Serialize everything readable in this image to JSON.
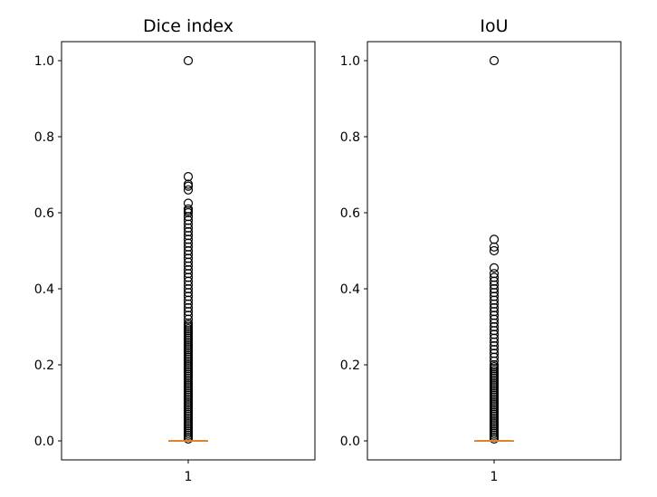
{
  "chart_data": [
    {
      "type": "box",
      "title": "Dice index",
      "xlabel": "",
      "ylabel": "",
      "categories": [
        "1"
      ],
      "ylim": [
        -0.05,
        1.05
      ],
      "yticks": [
        "0.0",
        "0.2",
        "0.4",
        "0.6",
        "0.8",
        "1.0"
      ],
      "grid": false,
      "box": {
        "min": 0.0,
        "q1": 0.0,
        "median": 0.0,
        "q3": 0.0,
        "max": 0.0
      },
      "outliers": [
        0.005,
        0.01,
        0.015,
        0.02,
        0.025,
        0.03,
        0.035,
        0.04,
        0.045,
        0.05,
        0.055,
        0.06,
        0.065,
        0.07,
        0.075,
        0.08,
        0.085,
        0.09,
        0.095,
        0.1,
        0.105,
        0.11,
        0.115,
        0.12,
        0.125,
        0.13,
        0.135,
        0.14,
        0.145,
        0.15,
        0.155,
        0.16,
        0.165,
        0.17,
        0.175,
        0.18,
        0.185,
        0.19,
        0.195,
        0.2,
        0.205,
        0.21,
        0.215,
        0.22,
        0.225,
        0.23,
        0.235,
        0.24,
        0.245,
        0.25,
        0.255,
        0.26,
        0.265,
        0.27,
        0.275,
        0.28,
        0.285,
        0.29,
        0.295,
        0.3,
        0.305,
        0.31,
        0.32,
        0.33,
        0.34,
        0.35,
        0.36,
        0.37,
        0.38,
        0.39,
        0.4,
        0.41,
        0.42,
        0.43,
        0.44,
        0.45,
        0.46,
        0.47,
        0.48,
        0.49,
        0.5,
        0.51,
        0.52,
        0.53,
        0.54,
        0.55,
        0.56,
        0.57,
        0.58,
        0.59,
        0.6,
        0.605,
        0.61,
        0.625,
        0.66,
        0.67,
        0.675,
        0.695,
        1.0
      ],
      "colors": {
        "median": "#e8802a",
        "outlier": "#000000"
      }
    },
    {
      "type": "box",
      "title": "IoU",
      "xlabel": "",
      "ylabel": "",
      "categories": [
        "1"
      ],
      "ylim": [
        -0.05,
        1.05
      ],
      "yticks": [
        "0.0",
        "0.2",
        "0.4",
        "0.6",
        "0.8",
        "1.0"
      ],
      "grid": false,
      "box": {
        "min": 0.0,
        "q1": 0.0,
        "median": 0.0,
        "q3": 0.0,
        "max": 0.0
      },
      "outliers": [
        0.005,
        0.01,
        0.015,
        0.02,
        0.025,
        0.03,
        0.035,
        0.04,
        0.045,
        0.05,
        0.055,
        0.06,
        0.065,
        0.07,
        0.075,
        0.08,
        0.085,
        0.09,
        0.095,
        0.1,
        0.105,
        0.11,
        0.115,
        0.12,
        0.125,
        0.13,
        0.135,
        0.14,
        0.145,
        0.15,
        0.155,
        0.16,
        0.165,
        0.17,
        0.175,
        0.18,
        0.185,
        0.19,
        0.195,
        0.2,
        0.21,
        0.22,
        0.23,
        0.24,
        0.25,
        0.26,
        0.27,
        0.28,
        0.29,
        0.3,
        0.31,
        0.32,
        0.33,
        0.34,
        0.35,
        0.36,
        0.37,
        0.38,
        0.39,
        0.4,
        0.41,
        0.42,
        0.43,
        0.44,
        0.455,
        0.5,
        0.51,
        0.53,
        1.0
      ],
      "colors": {
        "median": "#e8802a",
        "outlier": "#000000"
      }
    }
  ]
}
